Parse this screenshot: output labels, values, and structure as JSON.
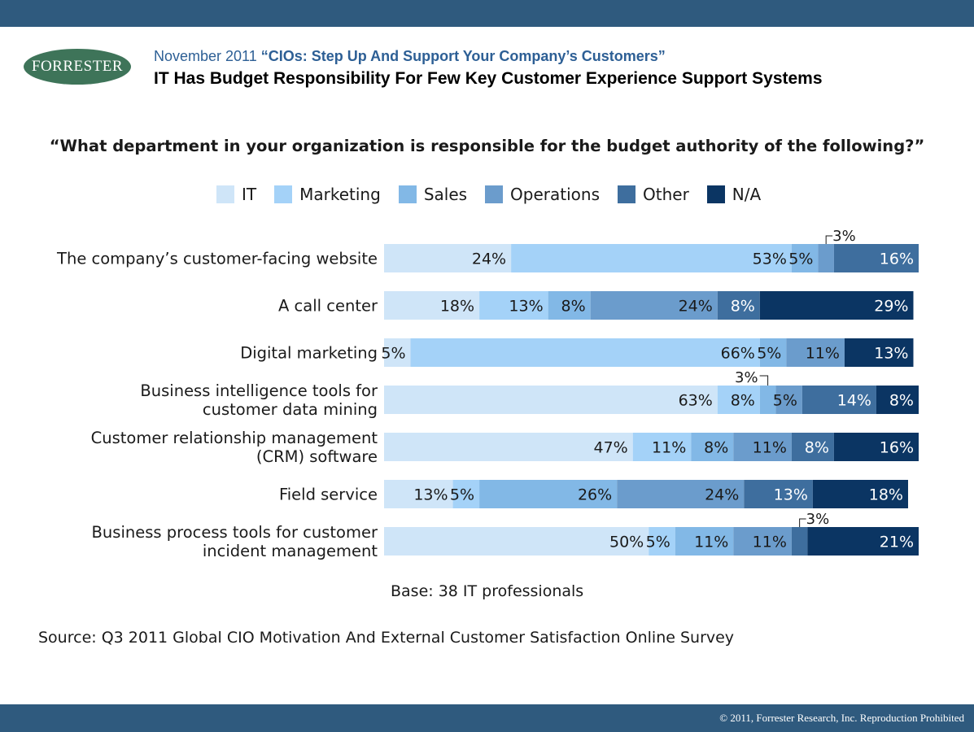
{
  "header": {
    "logo_text": "FORRESTER",
    "date": "November 2011",
    "report_title": "“CIOs: Step Up And Support Your Company’s Customers”",
    "page_title": "IT Has Budget Responsibility For Few Key Customer Experience Support Systems"
  },
  "footer": {
    "base": "Base: 38 IT professionals",
    "source": "Source: Q3 2011 Global CIO Motivation And External Customer Satisfaction Online Survey",
    "copyright": "© 2011, Forrester Research, Inc. Reproduction Prohibited"
  },
  "colors": {
    "bar_blue": "#2f5a7e",
    "brand_green": "#3e7459",
    "IT": "#cfe5f8",
    "Marketing": "#a4d2f8",
    "Sales": "#82b8e6",
    "Operations": "#6b9ccc",
    "Other": "#3e6e9e",
    "N/A": "#0b3563"
  },
  "chart_data": {
    "type": "bar",
    "orientation": "horizontal",
    "stacked": true,
    "title": "“What department in your organization is responsible for the budget authority of the following?”",
    "categories": [
      [
        "The company’s customer-facing website"
      ],
      [
        "A call center"
      ],
      [
        "Digital marketing"
      ],
      [
        "Business intelligence tools for",
        "customer data mining"
      ],
      [
        "Customer relationship management",
        "(CRM) software"
      ],
      [
        "Field service"
      ],
      [
        "Business process tools for customer",
        "incident management"
      ]
    ],
    "series": [
      {
        "name": "IT",
        "values": [
          24,
          18,
          5,
          63,
          47,
          13,
          50
        ]
      },
      {
        "name": "Marketing",
        "values": [
          53,
          13,
          66,
          8,
          11,
          5,
          5
        ]
      },
      {
        "name": "Sales",
        "values": [
          5,
          8,
          5,
          3,
          8,
          26,
          11
        ]
      },
      {
        "name": "Operations",
        "values": [
          3,
          24,
          11,
          5,
          11,
          24,
          11
        ]
      },
      {
        "name": "Other",
        "values": [
          16,
          8,
          0,
          14,
          8,
          13,
          3
        ]
      },
      {
        "name": "N/A",
        "values": [
          0,
          29,
          13,
          8,
          16,
          18,
          21
        ]
      }
    ],
    "legend": [
      "IT",
      "Marketing",
      "Sales",
      "Operations",
      "Other",
      "N/A"
    ],
    "legend_position": "top",
    "value_suffix": "%",
    "xlim": [
      0,
      101
    ],
    "grid": false
  }
}
